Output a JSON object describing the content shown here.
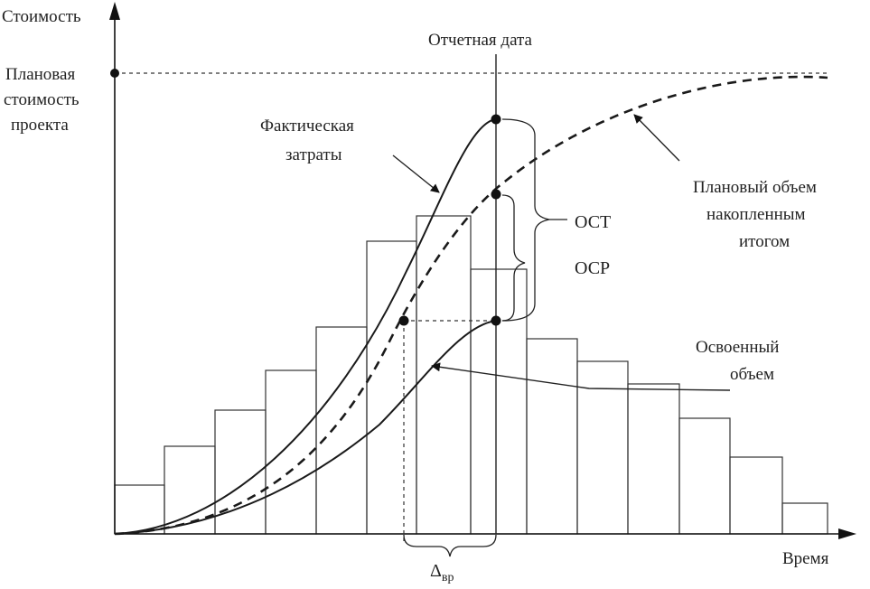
{
  "axes": {
    "y_label": "Стоимость",
    "x_label": "Время"
  },
  "labels": {
    "planned_cost_line1": "Плановая",
    "planned_cost_line2": "стоимость",
    "planned_cost_line3": "проекта",
    "reporting_date": "Отчетная дата",
    "actual_line1": "Фактическая",
    "actual_line2": "затраты",
    "planned_volume_line1": "Плановый объем",
    "planned_volume_line2": "накопленным",
    "planned_volume_line3": "итогом",
    "ost": "ОСТ",
    "ocp": "ОСР",
    "earned_line1": "Освоенный",
    "earned_line2": "объем",
    "delta_main": "Δ",
    "delta_sub": "вр"
  },
  "colors": {
    "line": "#1a1a1a",
    "background": "#ffffff"
  }
}
